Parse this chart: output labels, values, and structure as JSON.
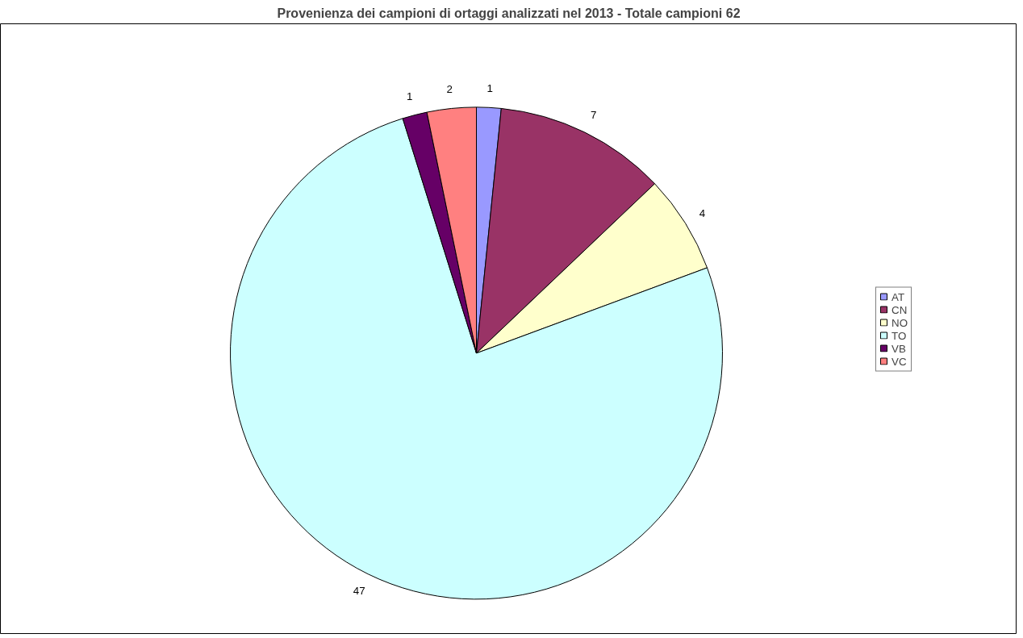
{
  "chart_data": {
    "type": "pie",
    "title": "Provenienza dei campioni di ortaggi analizzati nel 2013 - Totale campioni 62",
    "categories": [
      "AT",
      "CN",
      "NO",
      "TO",
      "VB",
      "VC"
    ],
    "values": [
      1,
      7,
      4,
      47,
      1,
      2
    ],
    "colors": [
      "#9999ff",
      "#993366",
      "#ffffcc",
      "#ccffff",
      "#660066",
      "#ff8080"
    ],
    "data_labels": true,
    "legend": "right"
  }
}
